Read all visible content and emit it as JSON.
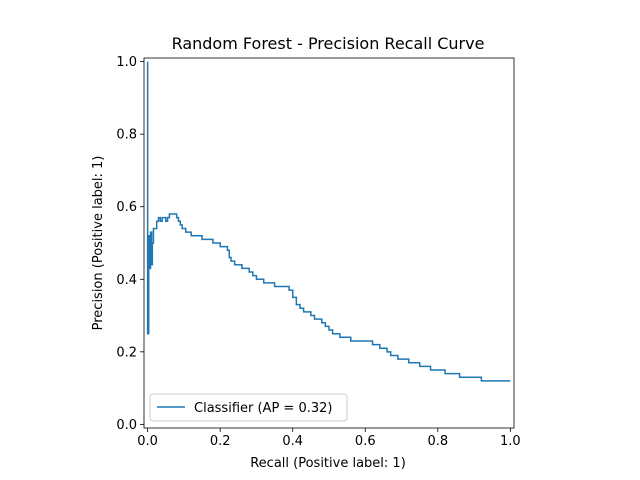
{
  "chart_data": {
    "type": "line",
    "title": "Random Forest - Precision Recall Curve",
    "xlabel": "Recall (Positive label: 1)",
    "ylabel": "Precision (Positive label: 1)",
    "xlim": [
      -0.01,
      1.01
    ],
    "ylim": [
      -0.01,
      1.01
    ],
    "xticks": [
      0.0,
      0.2,
      0.4,
      0.6,
      0.8,
      1.0
    ],
    "xtick_labels": [
      "0.0",
      "0.2",
      "0.4",
      "0.6",
      "0.8",
      "1.0"
    ],
    "yticks": [
      0.0,
      0.2,
      0.4,
      0.6,
      0.8,
      1.0
    ],
    "ytick_labels": [
      "0.0",
      "0.2",
      "0.4",
      "0.6",
      "0.8",
      "1.0"
    ],
    "grid": false,
    "legend_position": "lower-left",
    "drawstyle": "steps-post",
    "series": [
      {
        "name": "Classifier (AP = 0.32)",
        "color": "#1f77b4",
        "x": [
          0.0,
          0.0,
          0.003,
          0.003,
          0.006,
          0.006,
          0.008,
          0.011,
          0.013,
          0.016,
          0.02,
          0.025,
          0.03,
          0.035,
          0.04,
          0.045,
          0.05,
          0.055,
          0.06,
          0.065,
          0.07,
          0.075,
          0.08,
          0.085,
          0.09,
          0.095,
          0.1,
          0.105,
          0.11,
          0.115,
          0.12,
          0.125,
          0.13,
          0.135,
          0.14,
          0.15,
          0.16,
          0.17,
          0.18,
          0.19,
          0.2,
          0.21,
          0.22,
          0.225,
          0.23,
          0.24,
          0.25,
          0.26,
          0.27,
          0.28,
          0.29,
          0.3,
          0.31,
          0.32,
          0.33,
          0.34,
          0.35,
          0.36,
          0.37,
          0.38,
          0.39,
          0.4,
          0.405,
          0.41,
          0.42,
          0.43,
          0.44,
          0.45,
          0.46,
          0.47,
          0.48,
          0.49,
          0.5,
          0.51,
          0.52,
          0.53,
          0.54,
          0.55,
          0.56,
          0.57,
          0.58,
          0.6,
          0.62,
          0.64,
          0.66,
          0.67,
          0.68,
          0.69,
          0.7,
          0.71,
          0.72,
          0.73,
          0.74,
          0.75,
          0.76,
          0.78,
          0.8,
          0.82,
          0.84,
          0.86,
          0.88,
          0.9,
          0.92,
          0.94,
          0.96,
          0.98,
          1.0
        ],
        "y": [
          1.0,
          0.25,
          0.25,
          0.52,
          0.52,
          0.43,
          0.53,
          0.44,
          0.5,
          0.54,
          0.54,
          0.56,
          0.57,
          0.56,
          0.57,
          0.57,
          0.56,
          0.57,
          0.58,
          0.58,
          0.58,
          0.58,
          0.57,
          0.56,
          0.55,
          0.54,
          0.54,
          0.53,
          0.53,
          0.53,
          0.52,
          0.52,
          0.52,
          0.52,
          0.52,
          0.51,
          0.51,
          0.51,
          0.5,
          0.5,
          0.49,
          0.49,
          0.48,
          0.46,
          0.45,
          0.44,
          0.44,
          0.43,
          0.43,
          0.42,
          0.41,
          0.4,
          0.4,
          0.39,
          0.39,
          0.39,
          0.38,
          0.38,
          0.38,
          0.38,
          0.37,
          0.35,
          0.35,
          0.33,
          0.32,
          0.31,
          0.31,
          0.3,
          0.29,
          0.29,
          0.28,
          0.27,
          0.26,
          0.25,
          0.25,
          0.24,
          0.24,
          0.24,
          0.23,
          0.23,
          0.23,
          0.23,
          0.22,
          0.21,
          0.2,
          0.19,
          0.19,
          0.18,
          0.18,
          0.18,
          0.17,
          0.17,
          0.17,
          0.16,
          0.16,
          0.15,
          0.15,
          0.14,
          0.14,
          0.13,
          0.13,
          0.13,
          0.12,
          0.12,
          0.12,
          0.12,
          0.12
        ]
      }
    ]
  }
}
